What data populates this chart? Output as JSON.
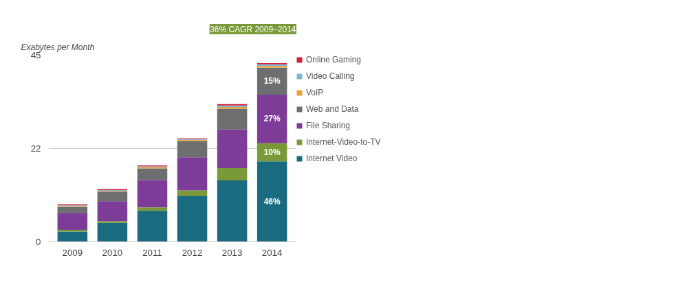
{
  "chart_data": {
    "type": "bar",
    "stacked": true,
    "ylabel": "Exabytes per Month",
    "categories": [
      "2009",
      "2010",
      "2011",
      "2012",
      "2013",
      "2014"
    ],
    "series": [
      {
        "name": "Internet Video",
        "color": "#1a6a80",
        "values": [
          2.5,
          4.6,
          7.5,
          11.0,
          14.8,
          19.4
        ]
      },
      {
        "name": "Internet-Video-to-TV",
        "color": "#7a9a3a",
        "values": [
          0.4,
          0.4,
          0.8,
          1.4,
          3.0,
          4.4
        ]
      },
      {
        "name": "File Sharing",
        "color": "#7d3c98",
        "values": [
          4.1,
          4.8,
          6.6,
          8.0,
          9.3,
          11.7
        ]
      },
      {
        "name": "Web and Data",
        "color": "#6d6e70",
        "values": [
          1.4,
          2.3,
          2.8,
          3.9,
          5.0,
          6.5
        ]
      },
      {
        "name": "VoIP",
        "color": "#e8a33c",
        "values": [
          0.2,
          0.2,
          0.3,
          0.3,
          0.4,
          0.4
        ]
      },
      {
        "name": "Video Calling",
        "color": "#7fb3cf",
        "values": [
          0.2,
          0.2,
          0.2,
          0.2,
          0.4,
          0.4
        ]
      },
      {
        "name": "Online Gaming",
        "color": "#d6203a",
        "values": [
          0.2,
          0.2,
          0.2,
          0.2,
          0.3,
          0.3
        ]
      }
    ],
    "ylim": [
      0,
      45
    ],
    "yticks": [
      0,
      {
        "value": 22.5,
        "label": "22"
      },
      45
    ],
    "grid": "y",
    "legend": "right",
    "annotations": [
      "36% CAGR 2009–2014",
      "46%",
      "10%",
      "27%",
      "15%"
    ]
  }
}
